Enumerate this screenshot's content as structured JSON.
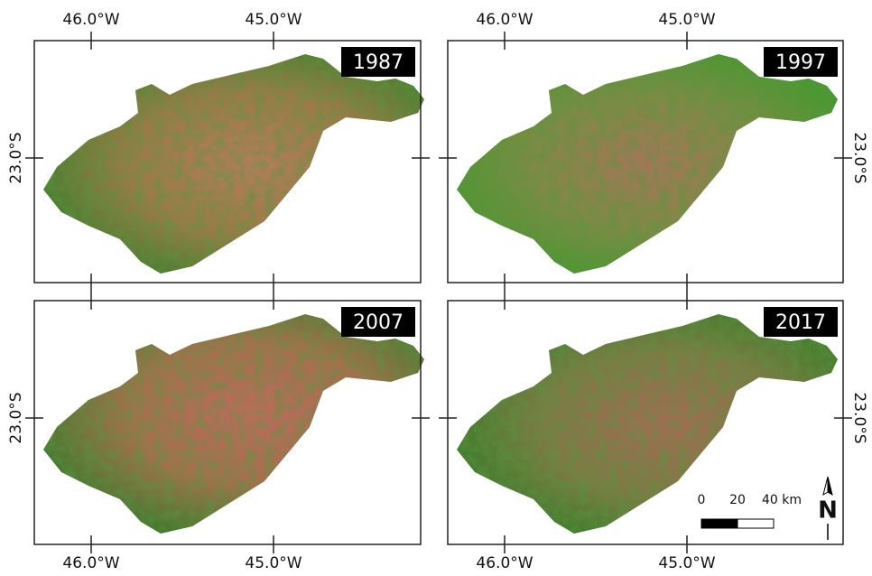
{
  "panels": [
    {
      "year": "1987"
    },
    {
      "year": "1997"
    },
    {
      "year": "2007"
    },
    {
      "year": "2017"
    }
  ],
  "lon_labels": [
    "46.0°W",
    "45.0°W"
  ],
  "lat_label": "23.0°S",
  "scale_bar": {
    "labels": [
      "0",
      "20",
      "40 km"
    ]
  },
  "north_arrow": {
    "label": "N"
  }
}
